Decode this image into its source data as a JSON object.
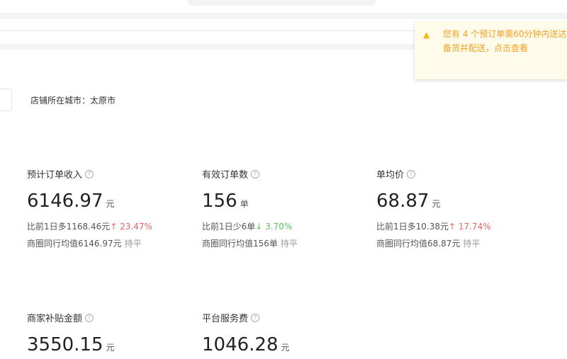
{
  "notice": {
    "icon": "megaphone-icon",
    "text_line1": "您有 4 个预订单需60分钟内送达",
    "text_line2": "备货并配送，点击查看"
  },
  "city": "店铺所在城市：太原市",
  "metrics": [
    {
      "title": "预计订单收入",
      "value": "6146.97",
      "unit": "元",
      "compare": "比前1日多1168.46元",
      "trend": "up",
      "arrow": "↑",
      "pct": "23.47%",
      "avg": "商圈同行均值6146.97元",
      "avg_status": "持平"
    },
    {
      "title": "有效订单数",
      "value": "156",
      "unit": "单",
      "compare": "比前1日少6单",
      "trend": "down",
      "arrow": "↓",
      "pct": "3.70%",
      "avg": "商圈同行均值156单",
      "avg_status": "持平"
    },
    {
      "title": "单均价",
      "value": "68.87",
      "unit": "元",
      "compare": "比前1日多10.38元",
      "trend": "up",
      "arrow": "↑",
      "pct": "17.74%",
      "avg": "商圈同行均值68.87元",
      "avg_status": "持平"
    },
    {
      "title": "商家补贴金额",
      "value": "3550.15",
      "unit": "元"
    },
    {
      "title": "平台服务费",
      "value": "1046.28",
      "unit": "元"
    }
  ],
  "colors": {
    "up": "#e86464",
    "down": "#5cc05c",
    "notice": "#f0a020"
  }
}
